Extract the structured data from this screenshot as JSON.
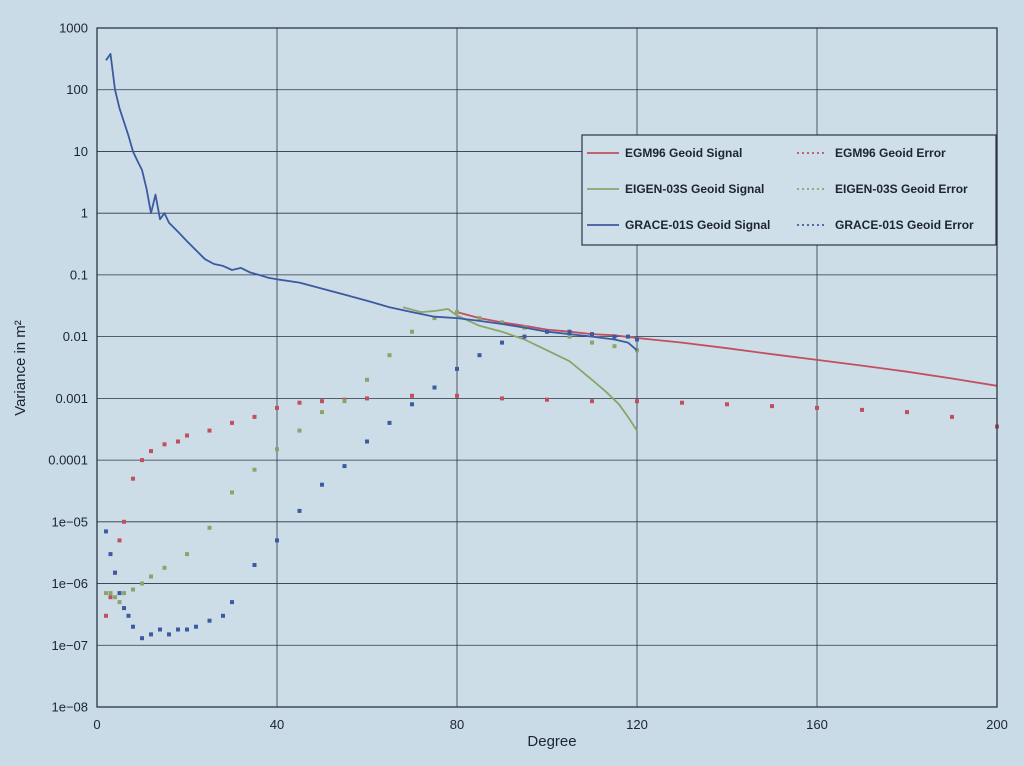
{
  "chart_data": {
    "type": "line",
    "xlabel": "Degree",
    "ylabel": "Variance in m²",
    "xlim": [
      0,
      200
    ],
    "ylim": [
      1e-08,
      1000
    ],
    "yscale": "log",
    "grid": true,
    "legend_position": "top-right",
    "x_ticks": [
      "0",
      "40",
      "80",
      "120",
      "160",
      "200"
    ],
    "y_ticks": [
      "1000",
      "100",
      "10",
      "1",
      "0.1",
      "0.01",
      "0.001",
      "0.0001",
      "1e−05",
      "1e−06",
      "1e−07",
      "1e−08"
    ],
    "series": [
      {
        "name": "EGM96 Geoid Signal",
        "style": "solid",
        "color": "#c0505f",
        "x": [
          80,
          85,
          90,
          95,
          100,
          105,
          110,
          115,
          120,
          130,
          140,
          150,
          160,
          170,
          180,
          190,
          200
        ],
        "y": [
          0.025,
          0.02,
          0.017,
          0.015,
          0.013,
          0.012,
          0.011,
          0.0105,
          0.0095,
          0.008,
          0.0065,
          0.0052,
          0.0042,
          0.0034,
          0.0027,
          0.0021,
          0.0016
        ]
      },
      {
        "name": "EGM96 Geoid Error",
        "style": "dotted",
        "color": "#c0505f",
        "x": [
          2,
          3,
          4,
          5,
          6,
          8,
          10,
          12,
          15,
          18,
          20,
          25,
          30,
          35,
          40,
          45,
          50,
          55,
          60,
          70,
          80,
          90,
          100,
          110,
          120,
          130,
          140,
          150,
          160,
          170,
          180,
          190,
          200
        ],
        "y": [
          3e-07,
          6e-07,
          1.5e-06,
          5e-06,
          1e-05,
          5e-05,
          0.0001,
          0.00014,
          0.00018,
          0.0002,
          0.00025,
          0.0003,
          0.0004,
          0.0005,
          0.0007,
          0.00085,
          0.0009,
          0.00095,
          0.001,
          0.0011,
          0.0011,
          0.001,
          0.00095,
          0.0009,
          0.0009,
          0.00085,
          0.0008,
          0.00075,
          0.0007,
          0.00065,
          0.0006,
          0.0005,
          0.00035
        ]
      },
      {
        "name": "EIGEN-03S Geoid Signal",
        "style": "solid",
        "color": "#8aa56b",
        "x": [
          68,
          72,
          75,
          78,
          80,
          85,
          90,
          95,
          100,
          105,
          110,
          113,
          116,
          118,
          120
        ],
        "y": [
          0.03,
          0.025,
          0.026,
          0.028,
          0.022,
          0.015,
          0.012,
          0.009,
          0.006,
          0.004,
          0.002,
          0.0013,
          0.0008,
          0.0005,
          0.0003
        ]
      },
      {
        "name": "EIGEN-03S Geoid Error",
        "style": "dotted",
        "color": "#8aa56b",
        "x": [
          2,
          3,
          4,
          5,
          6,
          8,
          10,
          12,
          15,
          20,
          25,
          30,
          35,
          40,
          45,
          50,
          55,
          60,
          65,
          70,
          75,
          80,
          85,
          90,
          95,
          100,
          105,
          110,
          115,
          120
        ],
        "y": [
          7e-07,
          7e-07,
          6e-07,
          5e-07,
          7e-07,
          8e-07,
          1e-06,
          1.3e-06,
          1.8e-06,
          3e-06,
          8e-06,
          3e-05,
          7e-05,
          0.00015,
          0.0003,
          0.0006,
          0.0009,
          0.002,
          0.005,
          0.012,
          0.02,
          0.025,
          0.02,
          0.017,
          0.014,
          0.012,
          0.01,
          0.008,
          0.007,
          0.006
        ]
      },
      {
        "name": "GRACE-01S Geoid Signal",
        "style": "solid",
        "color": "#3b5aa0",
        "x": [
          2,
          3,
          4,
          5,
          6,
          7,
          8,
          9,
          10,
          11,
          12,
          13,
          14,
          15,
          16,
          18,
          20,
          22,
          24,
          26,
          28,
          30,
          32,
          34,
          36,
          38,
          40,
          45,
          50,
          55,
          60,
          65,
          70,
          75,
          80,
          85,
          90,
          95,
          100,
          105,
          110,
          115,
          118,
          120
        ],
        "y": [
          300,
          380,
          100,
          50,
          30,
          18,
          10,
          7,
          5,
          2.5,
          1,
          2,
          0.8,
          1,
          0.7,
          0.5,
          0.35,
          0.25,
          0.18,
          0.15,
          0.14,
          0.12,
          0.13,
          0.11,
          0.1,
          0.09,
          0.085,
          0.075,
          0.06,
          0.048,
          0.038,
          0.03,
          0.025,
          0.021,
          0.02,
          0.018,
          0.016,
          0.014,
          0.012,
          0.011,
          0.01,
          0.009,
          0.008,
          0.006
        ]
      },
      {
        "name": "GRACE-01S Geoid Error",
        "style": "dotted",
        "color": "#3b5aa0",
        "x": [
          2,
          3,
          4,
          5,
          6,
          7,
          8,
          10,
          12,
          14,
          16,
          18,
          20,
          22,
          25,
          28,
          30,
          35,
          40,
          45,
          50,
          55,
          60,
          65,
          70,
          75,
          80,
          85,
          90,
          95,
          100,
          105,
          110,
          115,
          118,
          120
        ],
        "y": [
          7e-06,
          3e-06,
          1.5e-06,
          7e-07,
          4e-07,
          3e-07,
          2e-07,
          1.3e-07,
          1.5e-07,
          1.8e-07,
          1.5e-07,
          1.8e-07,
          1.8e-07,
          2e-07,
          2.5e-07,
          3e-07,
          5e-07,
          2e-06,
          5e-06,
          1.5e-05,
          4e-05,
          8e-05,
          0.0002,
          0.0004,
          0.0008,
          0.0015,
          0.003,
          0.005,
          0.008,
          0.01,
          0.012,
          0.012,
          0.011,
          0.01,
          0.01,
          0.009
        ]
      }
    ]
  }
}
